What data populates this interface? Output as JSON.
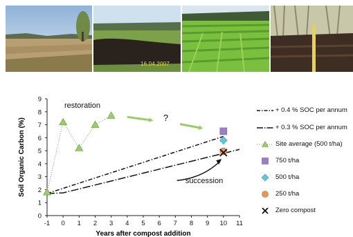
{
  "photos": {
    "date_stamp": "16.04.2007"
  },
  "chart_data": {
    "type": "line",
    "xlabel": "Years after compost addition",
    "ylabel": "Soil Organic Carbon (%)",
    "xlim": [
      -1,
      11
    ],
    "ylim": [
      0,
      9
    ],
    "x_ticks": [
      "-1",
      "0",
      "1",
      "2",
      "3",
      "4",
      "5",
      "6",
      "7",
      "8",
      "9",
      "10",
      "11"
    ],
    "y_ticks": [
      "0",
      "1",
      "2",
      "3",
      "4",
      "5",
      "6",
      "7",
      "8",
      "9"
    ],
    "grid": false,
    "legend_position": "right",
    "series": [
      {
        "name": "+ 0.4 % SOC per annum",
        "style": "dash-dot",
        "points": [
          [
            -1,
            1.7
          ],
          [
            10,
            6.1
          ]
        ]
      },
      {
        "name": "+ 0.3 % SOC per annum",
        "style": "long-dash-dot",
        "points": [
          [
            -1,
            1.7
          ],
          [
            0,
            1.75
          ],
          [
            11,
            5.1
          ]
        ]
      },
      {
        "name": "Site average (500 t/ha)",
        "style": "dotted-triangle",
        "color": "#9acd6a",
        "points": [
          [
            -1,
            1.8
          ],
          [
            0,
            7.2
          ],
          [
            1,
            5.2
          ],
          [
            2,
            7.0
          ],
          [
            3,
            7.7
          ]
        ]
      },
      {
        "name": "750 t/ha",
        "marker": "square",
        "color": "#9b7fc4",
        "points": [
          [
            10,
            6.5
          ]
        ]
      },
      {
        "name": "500 t/ha",
        "marker": "diamond",
        "color": "#66c4d6",
        "points": [
          [
            10,
            5.8
          ]
        ]
      },
      {
        "name": "250 t/ha",
        "marker": "circle",
        "color": "#e8955a",
        "points": [
          [
            10,
            4.95
          ]
        ]
      },
      {
        "name": "Zero compost",
        "marker": "x",
        "color": "#111111",
        "points": [
          [
            10,
            4.85
          ]
        ]
      }
    ],
    "annotations": [
      {
        "text": "restoration",
        "x": 1.2,
        "y": 8.3
      },
      {
        "text": "?",
        "x": 6.4,
        "y": 7.3
      },
      {
        "text": "succession",
        "x": 8.8,
        "y": 2.5
      }
    ],
    "colors": {
      "trend_arrow": "#9acd6a",
      "axis": "#222222"
    }
  }
}
